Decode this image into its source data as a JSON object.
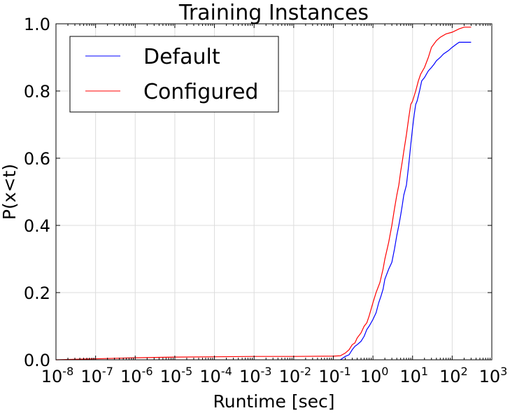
{
  "chart_data": {
    "type": "line",
    "title": "Training Instances",
    "xlabel": "Runtime [sec]",
    "ylabel": "P(x<t)",
    "xscale": "log",
    "xlim": [
      1e-08,
      1000
    ],
    "ylim": [
      0.0,
      1.0
    ],
    "grid": true,
    "legend_position": "top-left",
    "x_ticks": [
      {
        "base": "10",
        "exp": "-8",
        "value": 1e-08
      },
      {
        "base": "10",
        "exp": "-7",
        "value": 1e-07
      },
      {
        "base": "10",
        "exp": "-6",
        "value": 1e-06
      },
      {
        "base": "10",
        "exp": "-5",
        "value": 1e-05
      },
      {
        "base": "10",
        "exp": "-4",
        "value": 0.0001
      },
      {
        "base": "10",
        "exp": "-3",
        "value": 0.001
      },
      {
        "base": "10",
        "exp": "-2",
        "value": 0.01
      },
      {
        "base": "10",
        "exp": "-1",
        "value": 0.1
      },
      {
        "base": "10",
        "exp": "0",
        "value": 1
      },
      {
        "base": "10",
        "exp": "1",
        "value": 10
      },
      {
        "base": "10",
        "exp": "2",
        "value": 100
      },
      {
        "base": "10",
        "exp": "3",
        "value": 1000
      }
    ],
    "y_ticks": [
      {
        "label": "0.0",
        "value": 0.0
      },
      {
        "label": "0.2",
        "value": 0.2
      },
      {
        "label": "0.4",
        "value": 0.4
      },
      {
        "label": "0.6",
        "value": 0.6
      },
      {
        "label": "0.8",
        "value": 0.8
      },
      {
        "label": "1.0",
        "value": 1.0
      }
    ],
    "series": [
      {
        "name": "Default",
        "color": "#0000ff",
        "x": [
          0.15,
          0.2,
          0.25,
          0.3,
          0.35,
          0.4,
          0.5,
          0.6,
          0.7,
          0.8,
          1.0,
          1.2,
          1.4,
          1.6,
          1.8,
          2.0,
          2.5,
          3.0,
          3.5,
          4.0,
          4.5,
          5.0,
          5.5,
          6.0,
          7.0,
          8.0,
          9.0,
          10,
          11,
          12,
          13,
          15,
          17,
          20,
          25,
          30,
          35,
          40,
          50,
          60,
          80,
          100,
          130,
          150,
          300
        ],
        "y": [
          0.0,
          0.01,
          0.015,
          0.03,
          0.04,
          0.045,
          0.055,
          0.07,
          0.09,
          0.1,
          0.12,
          0.14,
          0.17,
          0.19,
          0.21,
          0.24,
          0.27,
          0.29,
          0.33,
          0.37,
          0.4,
          0.43,
          0.46,
          0.49,
          0.52,
          0.58,
          0.64,
          0.69,
          0.73,
          0.76,
          0.77,
          0.8,
          0.83,
          0.84,
          0.86,
          0.87,
          0.88,
          0.89,
          0.9,
          0.91,
          0.92,
          0.93,
          0.94,
          0.945,
          0.945
        ]
      },
      {
        "name": "Configured",
        "color": "#ff0000",
        "x": [
          1e-08,
          1e-07,
          1e-06,
          1e-05,
          0.0001,
          0.001,
          0.01,
          0.1,
          0.15,
          0.2,
          0.25,
          0.3,
          0.35,
          0.4,
          0.5,
          0.6,
          0.7,
          0.8,
          1.0,
          1.2,
          1.5,
          1.8,
          2.0,
          2.5,
          3.0,
          3.5,
          4.0,
          4.5,
          5.0,
          5.5,
          6.0,
          7.0,
          8.0,
          9.0,
          10,
          12,
          14,
          16,
          20,
          25,
          30,
          40,
          50,
          70,
          100,
          150,
          200,
          300
        ],
        "y": [
          0.0,
          0.003,
          0.006,
          0.008,
          0.009,
          0.01,
          0.01,
          0.011,
          0.012,
          0.02,
          0.03,
          0.045,
          0.05,
          0.065,
          0.08,
          0.1,
          0.11,
          0.13,
          0.17,
          0.2,
          0.23,
          0.27,
          0.3,
          0.35,
          0.4,
          0.45,
          0.49,
          0.52,
          0.56,
          0.59,
          0.62,
          0.67,
          0.72,
          0.76,
          0.77,
          0.8,
          0.83,
          0.85,
          0.87,
          0.9,
          0.93,
          0.95,
          0.96,
          0.97,
          0.975,
          0.985,
          0.99,
          0.99
        ]
      }
    ]
  }
}
